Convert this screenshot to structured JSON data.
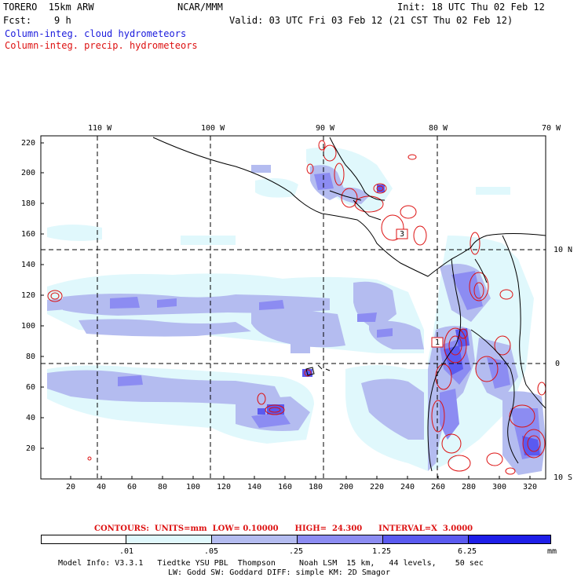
{
  "header": {
    "model": "TORERO  15km ARW",
    "center": "NCAR/MMM",
    "init": "Init: 18 UTC Thu 02 Feb 12",
    "fcst": "Fcst:    9 h",
    "valid": "Valid: 03 UTC Fri 03 Feb 12 (21 CST Thu 02 Feb 12)",
    "field1": "Column-integ. cloud hydrometeors",
    "field2": "Column-integ. precip. hydrometeors"
  },
  "top_axis": [
    "110 W",
    "100 W",
    "90 W",
    "80 W",
    "70 W"
  ],
  "right_axis": [
    "10 N",
    "0",
    "10 S"
  ],
  "left_axis": [
    "220",
    "200",
    "180",
    "160",
    "140",
    "120",
    "100",
    "80",
    "60",
    "40",
    "20"
  ],
  "bottom_axis": [
    "20",
    "40",
    "60",
    "80",
    "100",
    "120",
    "140",
    "160",
    "180",
    "200",
    "220",
    "240",
    "260",
    "280",
    "300",
    "320"
  ],
  "contour_boxes": [
    "3",
    "1"
  ],
  "contours_info": {
    "label": "CONTOURS:  UNITS=mm  LOW= 0.10000      HIGH=  24.300      INTERVAL=X  3.0000"
  },
  "legend": {
    "thresholds": [
      ".01",
      ".05",
      ".25",
      "1.25",
      "6.25"
    ],
    "unit": "mm",
    "colors": [
      "#ffffff",
      "#e0f8fc",
      "#b4bcf0",
      "#8c8cf2",
      "#5a5af0",
      "#1e1ee8"
    ]
  },
  "footer": {
    "line1": "Model Info: V3.3.1   Tiedtke YSU PBL  Thompson     Noah LSM  15 km,   44 levels,    50 sec",
    "line2": "LW: Godd SW: Goddard DIFF: simple KM: 2D Smagor"
  },
  "colors": {
    "cloud_label": "#1a1adc",
    "precip_label": "#dd1111",
    "cloud_light": "#e0f8fc",
    "cloud_mid": "#b4bcf0",
    "cloud_heavy": "#8c8cf2",
    "cloud_max": "#5a5af0",
    "precip_contour": "#dd1111"
  }
}
